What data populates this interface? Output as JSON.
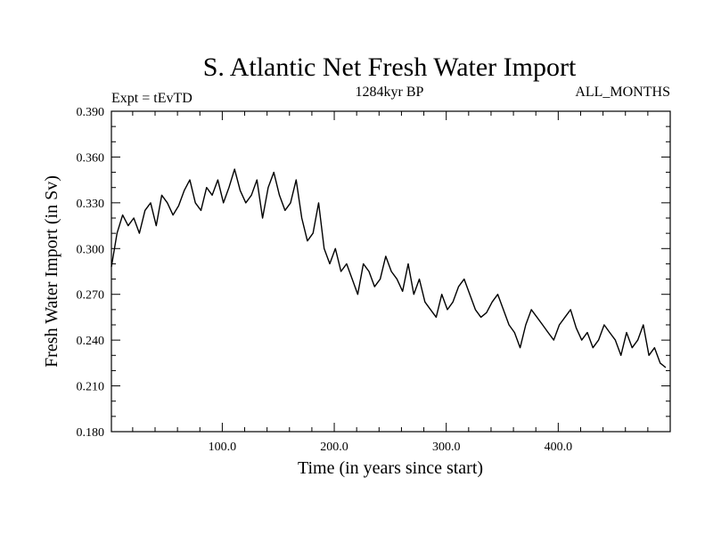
{
  "chart_data": {
    "type": "line",
    "title": "S. Atlantic Net Fresh Water Import",
    "subtitle_left": "Expt = tEvTD",
    "subtitle_center": "1284kyr BP",
    "subtitle_right": "ALL_MONTHS",
    "xlabel": "Time (in years since start)",
    "ylabel": "Fresh Water Import (in Sv)",
    "xlim": [
      1,
      500
    ],
    "ylim": [
      0.18,
      0.39
    ],
    "xticks": [
      100,
      200,
      300,
      400
    ],
    "xtick_labels": [
      "100.0",
      "200.0",
      "300.0",
      "400.0"
    ],
    "yticks": [
      0.18,
      0.21,
      0.24,
      0.27,
      0.3,
      0.33,
      0.36,
      0.39
    ],
    "ytick_labels": [
      "0.180",
      "0.210",
      "0.240",
      "0.270",
      "0.300",
      "0.330",
      "0.360",
      "0.390"
    ],
    "grid": false,
    "series": [
      {
        "name": "Net Fresh Water Import",
        "x_start": 1,
        "x_step": 5,
        "values": [
          0.288,
          0.31,
          0.322,
          0.315,
          0.32,
          0.31,
          0.325,
          0.33,
          0.315,
          0.335,
          0.33,
          0.322,
          0.328,
          0.338,
          0.345,
          0.33,
          0.325,
          0.34,
          0.335,
          0.345,
          0.33,
          0.34,
          0.352,
          0.338,
          0.33,
          0.335,
          0.345,
          0.32,
          0.34,
          0.35,
          0.335,
          0.325,
          0.33,
          0.345,
          0.32,
          0.305,
          0.31,
          0.33,
          0.3,
          0.29,
          0.3,
          0.285,
          0.29,
          0.28,
          0.27,
          0.29,
          0.285,
          0.275,
          0.28,
          0.295,
          0.285,
          0.28,
          0.272,
          0.29,
          0.27,
          0.28,
          0.265,
          0.26,
          0.255,
          0.27,
          0.26,
          0.265,
          0.275,
          0.28,
          0.27,
          0.26,
          0.255,
          0.258,
          0.265,
          0.27,
          0.26,
          0.25,
          0.245,
          0.235,
          0.25,
          0.26,
          0.255,
          0.25,
          0.245,
          0.24,
          0.25,
          0.255,
          0.26,
          0.248,
          0.24,
          0.245,
          0.235,
          0.24,
          0.25,
          0.245,
          0.24,
          0.23,
          0.245,
          0.235,
          0.24,
          0.25,
          0.23,
          0.235,
          0.225,
          0.222
        ]
      }
    ]
  }
}
